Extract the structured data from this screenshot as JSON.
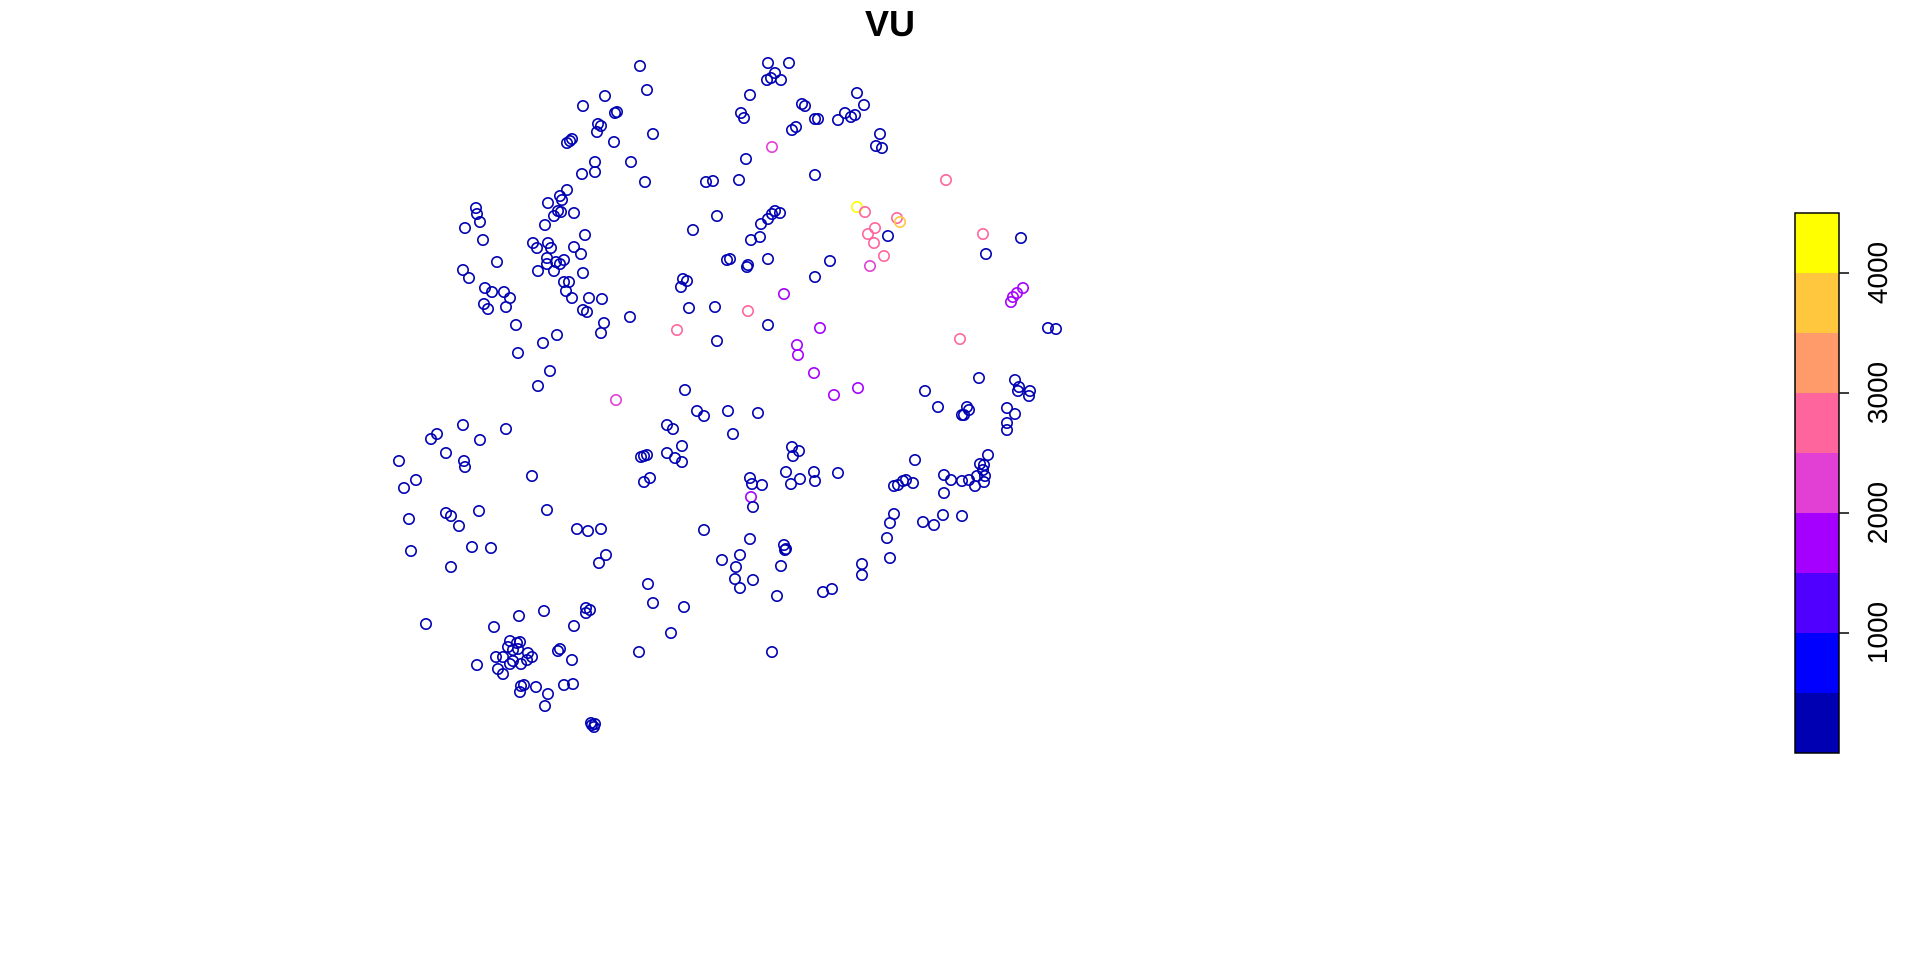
{
  "chart_data": {
    "type": "scatter",
    "title": "VU",
    "legend": {
      "placement": "right",
      "range": [
        0,
        4500
      ],
      "breaks": [
        0,
        500,
        1000,
        1500,
        2000,
        2500,
        3000,
        3500,
        4000,
        4500
      ],
      "colors": [
        "#0000B3",
        "#0000FF",
        "#5000FF",
        "#A500FF",
        "#E23FD5",
        "#FF659D",
        "#FF9A6A",
        "#FFC73E",
        "#FFFF00"
      ],
      "ticks": [
        "1000",
        "2000",
        "3000",
        "4000"
      ]
    },
    "points": [
      [
        640,
        66,
        300
      ],
      [
        768,
        63,
        300
      ],
      [
        789,
        63,
        300
      ],
      [
        775,
        73,
        300
      ],
      [
        767,
        80,
        300
      ],
      [
        771,
        78,
        300
      ],
      [
        781,
        80,
        300
      ],
      [
        647,
        90,
        300
      ],
      [
        605,
        96,
        300
      ],
      [
        750,
        95,
        300
      ],
      [
        583,
        106,
        300
      ],
      [
        615,
        113,
        300
      ],
      [
        617,
        112,
        300
      ],
      [
        802,
        104,
        300
      ],
      [
        805,
        106,
        300
      ],
      [
        741,
        113,
        300
      ],
      [
        744,
        118,
        300
      ],
      [
        598,
        124,
        300
      ],
      [
        601,
        126,
        300
      ],
      [
        597,
        132,
        300
      ],
      [
        614,
        142,
        300
      ],
      [
        653,
        134,
        300
      ],
      [
        796,
        127,
        300
      ],
      [
        792,
        130,
        300
      ],
      [
        815,
        119,
        300
      ],
      [
        818,
        119,
        300
      ],
      [
        838,
        120,
        300
      ],
      [
        845,
        113,
        300
      ],
      [
        851,
        117,
        300
      ],
      [
        855,
        115,
        300
      ],
      [
        857,
        93,
        300
      ],
      [
        864,
        105,
        300
      ],
      [
        880,
        134,
        300
      ],
      [
        876,
        146,
        300
      ],
      [
        882,
        148,
        300
      ],
      [
        570,
        141,
        300
      ],
      [
        567,
        143,
        300
      ],
      [
        572,
        139,
        300
      ],
      [
        595,
        162,
        300
      ],
      [
        595,
        172,
        300
      ],
      [
        582,
        174,
        300
      ],
      [
        631,
        162,
        300
      ],
      [
        645,
        182,
        300
      ],
      [
        746,
        159,
        300
      ],
      [
        772,
        147,
        2100
      ],
      [
        706,
        182,
        300
      ],
      [
        713,
        181,
        300
      ],
      [
        739,
        180,
        300
      ],
      [
        815,
        175,
        300
      ],
      [
        567,
        190,
        300
      ],
      [
        560,
        196,
        300
      ],
      [
        548,
        203,
        300
      ],
      [
        562,
        200,
        300
      ],
      [
        558,
        211,
        300
      ],
      [
        574,
        213,
        300
      ],
      [
        554,
        216,
        300
      ],
      [
        561,
        212,
        300
      ],
      [
        545,
        225,
        300
      ],
      [
        476,
        208,
        300
      ],
      [
        477,
        214,
        300
      ],
      [
        480,
        222,
        300
      ],
      [
        465,
        228,
        300
      ],
      [
        483,
        240,
        300
      ],
      [
        497,
        262,
        300
      ],
      [
        463,
        270,
        300
      ],
      [
        469,
        278,
        300
      ],
      [
        485,
        288,
        300
      ],
      [
        492,
        292,
        300
      ],
      [
        504,
        292,
        300
      ],
      [
        510,
        298,
        300
      ],
      [
        506,
        307,
        300
      ],
      [
        484,
        304,
        300
      ],
      [
        488,
        309,
        300
      ],
      [
        533,
        243,
        300
      ],
      [
        548,
        243,
        300
      ],
      [
        537,
        248,
        300
      ],
      [
        551,
        248,
        300
      ],
      [
        547,
        258,
        300
      ],
      [
        547,
        264,
        300
      ],
      [
        556,
        262,
        300
      ],
      [
        560,
        264,
        300
      ],
      [
        564,
        260,
        300
      ],
      [
        581,
        254,
        300
      ],
      [
        574,
        247,
        300
      ],
      [
        585,
        235,
        300
      ],
      [
        538,
        271,
        300
      ],
      [
        554,
        271,
        300
      ],
      [
        583,
        273,
        300
      ],
      [
        564,
        282,
        300
      ],
      [
        569,
        282,
        300
      ],
      [
        566,
        291,
        300
      ],
      [
        572,
        298,
        300
      ],
      [
        589,
        298,
        300
      ],
      [
        602,
        299,
        300
      ],
      [
        583,
        310,
        300
      ],
      [
        587,
        312,
        300
      ],
      [
        604,
        323,
        300
      ],
      [
        601,
        333,
        300
      ],
      [
        516,
        325,
        300
      ],
      [
        557,
        335,
        300
      ],
      [
        543,
        343,
        300
      ],
      [
        518,
        353,
        300
      ],
      [
        630,
        317,
        300
      ],
      [
        717,
        216,
        300
      ],
      [
        693,
        230,
        300
      ],
      [
        761,
        224,
        300
      ],
      [
        751,
        240,
        300
      ],
      [
        760,
        237,
        300
      ],
      [
        772,
        214,
        300
      ],
      [
        775,
        211,
        300
      ],
      [
        780,
        213,
        300
      ],
      [
        768,
        219,
        300
      ],
      [
        727,
        260,
        300
      ],
      [
        730,
        259,
        300
      ],
      [
        747,
        267,
        300
      ],
      [
        748,
        265,
        300
      ],
      [
        768,
        259,
        300
      ],
      [
        830,
        261,
        300
      ],
      [
        815,
        277,
        300
      ],
      [
        784,
        294,
        1700
      ],
      [
        683,
        279,
        300
      ],
      [
        687,
        281,
        300
      ],
      [
        681,
        287,
        300
      ],
      [
        689,
        308,
        300
      ],
      [
        715,
        307,
        300
      ],
      [
        748,
        311,
        2700
      ],
      [
        768,
        325,
        300
      ],
      [
        677,
        330,
        2800
      ],
      [
        717,
        341,
        300
      ],
      [
        797,
        345,
        1700
      ],
      [
        798,
        355,
        1700
      ],
      [
        820,
        328,
        1700
      ],
      [
        814,
        373,
        1700
      ],
      [
        857,
        207,
        4200
      ],
      [
        865,
        212,
        2600
      ],
      [
        868,
        234,
        2600
      ],
      [
        875,
        228,
        2600
      ],
      [
        874,
        243,
        2500
      ],
      [
        870,
        266,
        2200
      ],
      [
        884,
        256,
        2500
      ],
      [
        888,
        236,
        300
      ],
      [
        897,
        218,
        2700
      ],
      [
        900,
        222,
        3900
      ],
      [
        946,
        180,
        2700
      ],
      [
        983,
        234,
        2700
      ],
      [
        1021,
        238,
        300
      ],
      [
        986,
        254,
        300
      ],
      [
        1011,
        302,
        1800
      ],
      [
        1013,
        297,
        1800
      ],
      [
        1017,
        293,
        1800
      ],
      [
        1023,
        288,
        1800
      ],
      [
        1048,
        328,
        300
      ],
      [
        1056,
        329,
        300
      ],
      [
        960,
        339,
        2700
      ],
      [
        550,
        371,
        300
      ],
      [
        538,
        386,
        300
      ],
      [
        685,
        390,
        300
      ],
      [
        616,
        400,
        2100
      ],
      [
        697,
        411,
        300
      ],
      [
        704,
        416,
        300
      ],
      [
        728,
        411,
        300
      ],
      [
        758,
        413,
        300
      ],
      [
        834,
        395,
        1700
      ],
      [
        858,
        388,
        1700
      ],
      [
        925,
        391,
        300
      ],
      [
        938,
        407,
        300
      ],
      [
        979,
        378,
        300
      ],
      [
        1015,
        380,
        300
      ],
      [
        1019,
        387,
        300
      ],
      [
        1018,
        391,
        300
      ],
      [
        1030,
        391,
        300
      ],
      [
        1029,
        396,
        300
      ],
      [
        967,
        407,
        300
      ],
      [
        969,
        410,
        300
      ],
      [
        964,
        415,
        300
      ],
      [
        962,
        415,
        300
      ],
      [
        1007,
        408,
        300
      ],
      [
        1015,
        414,
        300
      ],
      [
        1007,
        423,
        300
      ],
      [
        1007,
        430,
        300
      ],
      [
        463,
        425,
        300
      ],
      [
        437,
        434,
        300
      ],
      [
        431,
        439,
        300
      ],
      [
        446,
        453,
        300
      ],
      [
        480,
        440,
        300
      ],
      [
        506,
        429,
        300
      ],
      [
        464,
        461,
        300
      ],
      [
        465,
        467,
        300
      ],
      [
        399,
        461,
        300
      ],
      [
        416,
        480,
        300
      ],
      [
        404,
        488,
        300
      ],
      [
        532,
        476,
        300
      ],
      [
        667,
        425,
        300
      ],
      [
        673,
        429,
        300
      ],
      [
        682,
        446,
        300
      ],
      [
        733,
        434,
        300
      ],
      [
        641,
        457,
        300
      ],
      [
        644,
        456,
        300
      ],
      [
        647,
        455,
        300
      ],
      [
        667,
        453,
        300
      ],
      [
        675,
        458,
        300
      ],
      [
        682,
        462,
        300
      ],
      [
        650,
        478,
        300
      ],
      [
        644,
        482,
        300
      ],
      [
        750,
        478,
        300
      ],
      [
        752,
        484,
        300
      ],
      [
        762,
        485,
        300
      ],
      [
        792,
        447,
        300
      ],
      [
        799,
        451,
        300
      ],
      [
        793,
        456,
        300
      ],
      [
        786,
        472,
        300
      ],
      [
        800,
        479,
        300
      ],
      [
        791,
        484,
        300
      ],
      [
        814,
        472,
        300
      ],
      [
        815,
        481,
        300
      ],
      [
        838,
        473,
        300
      ],
      [
        894,
        486,
        300
      ],
      [
        898,
        485,
        300
      ],
      [
        903,
        481,
        300
      ],
      [
        906,
        480,
        300
      ],
      [
        913,
        483,
        300
      ],
      [
        915,
        460,
        300
      ],
      [
        944,
        475,
        300
      ],
      [
        944,
        493,
        300
      ],
      [
        951,
        480,
        300
      ],
      [
        962,
        481,
        300
      ],
      [
        969,
        480,
        300
      ],
      [
        975,
        486,
        300
      ],
      [
        977,
        476,
        300
      ],
      [
        983,
        470,
        300
      ],
      [
        984,
        465,
        300
      ],
      [
        980,
        464,
        300
      ],
      [
        985,
        476,
        300
      ],
      [
        988,
        455,
        300
      ],
      [
        984,
        482,
        300
      ],
      [
        751,
        497,
        1800
      ],
      [
        753,
        507,
        300
      ],
      [
        894,
        514,
        300
      ],
      [
        890,
        523,
        300
      ],
      [
        409,
        519,
        300
      ],
      [
        446,
        513,
        300
      ],
      [
        451,
        516,
        300
      ],
      [
        459,
        526,
        300
      ],
      [
        479,
        511,
        300
      ],
      [
        547,
        510,
        300
      ],
      [
        411,
        551,
        300
      ],
      [
        451,
        567,
        300
      ],
      [
        472,
        547,
        300
      ],
      [
        491,
        548,
        300
      ],
      [
        577,
        529,
        300
      ],
      [
        588,
        531,
        300
      ],
      [
        601,
        529,
        300
      ],
      [
        704,
        530,
        300
      ],
      [
        923,
        522,
        300
      ],
      [
        934,
        525,
        300
      ],
      [
        943,
        515,
        300
      ],
      [
        962,
        516,
        300
      ],
      [
        887,
        538,
        300
      ],
      [
        890,
        558,
        300
      ],
      [
        599,
        563,
        300
      ],
      [
        606,
        555,
        300
      ],
      [
        750,
        539,
        300
      ],
      [
        740,
        555,
        300
      ],
      [
        722,
        560,
        300
      ],
      [
        736,
        567,
        300
      ],
      [
        735,
        579,
        300
      ],
      [
        740,
        588,
        300
      ],
      [
        753,
        580,
        300
      ],
      [
        784,
        545,
        300
      ],
      [
        786,
        549,
        300
      ],
      [
        781,
        566,
        300
      ],
      [
        785,
        550,
        300
      ],
      [
        862,
        564,
        300
      ],
      [
        862,
        575,
        300
      ],
      [
        823,
        592,
        300
      ],
      [
        832,
        589,
        300
      ],
      [
        777,
        596,
        300
      ],
      [
        648,
        584,
        300
      ],
      [
        653,
        603,
        300
      ],
      [
        684,
        607,
        300
      ],
      [
        426,
        624,
        300
      ],
      [
        494,
        627,
        300
      ],
      [
        519,
        616,
        300
      ],
      [
        544,
        611,
        300
      ],
      [
        586,
        608,
        300
      ],
      [
        590,
        610,
        300
      ],
      [
        586,
        613,
        300
      ],
      [
        574,
        626,
        300
      ],
      [
        510,
        641,
        300
      ],
      [
        517,
        643,
        300
      ],
      [
        513,
        650,
        300
      ],
      [
        508,
        647,
        300
      ],
      [
        520,
        642,
        300
      ],
      [
        518,
        649,
        300
      ],
      [
        528,
        653,
        300
      ],
      [
        532,
        657,
        300
      ],
      [
        527,
        660,
        300
      ],
      [
        521,
        664,
        300
      ],
      [
        513,
        661,
        300
      ],
      [
        503,
        657,
        300
      ],
      [
        496,
        657,
        300
      ],
      [
        498,
        669,
        300
      ],
      [
        503,
        674,
        300
      ],
      [
        510,
        664,
        300
      ],
      [
        477,
        665,
        300
      ],
      [
        560,
        649,
        300
      ],
      [
        558,
        651,
        300
      ],
      [
        572,
        660,
        300
      ],
      [
        671,
        633,
        300
      ],
      [
        639,
        652,
        300
      ],
      [
        772,
        652,
        300
      ],
      [
        524,
        685,
        300
      ],
      [
        520,
        692,
        300
      ],
      [
        521,
        686,
        300
      ],
      [
        536,
        687,
        300
      ],
      [
        548,
        694,
        300
      ],
      [
        545,
        706,
        300
      ],
      [
        564,
        685,
        300
      ],
      [
        573,
        684,
        300
      ],
      [
        591,
        723,
        300
      ],
      [
        595,
        724,
        300
      ],
      [
        594,
        727,
        300
      ],
      [
        592,
        725,
        300
      ]
    ]
  }
}
